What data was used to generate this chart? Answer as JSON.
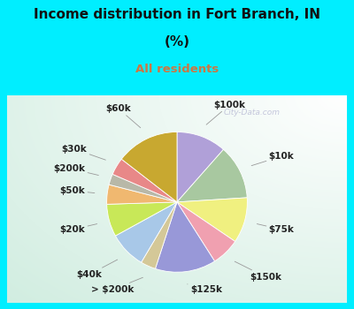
{
  "title_line1": "Income distribution in Fort Branch, IN",
  "title_line2": "(%)",
  "subtitle": "All residents",
  "title_color": "#111111",
  "subtitle_color": "#cc7744",
  "bg_cyan": "#00eeff",
  "watermark": "City-Data.com",
  "labels": [
    "$100k",
    "$10k",
    "$75k",
    "$150k",
    "$125k",
    "> $200k",
    "$40k",
    "$20k",
    "$50k",
    "$200k",
    "$30k",
    "$60k"
  ],
  "values": [
    11.5,
    12.5,
    10.5,
    6.5,
    14.0,
    3.5,
    8.5,
    7.5,
    4.5,
    2.5,
    4.0,
    14.5
  ],
  "colors": [
    "#b0a0d8",
    "#a8c8a0",
    "#f0f080",
    "#f0a0b0",
    "#9898d8",
    "#d4c898",
    "#a8c8e8",
    "#c8e858",
    "#f0b870",
    "#b8b8a8",
    "#e88888",
    "#c8a830"
  ],
  "label_color": "#222222",
  "label_fontsize": 7.5,
  "figsize": [
    4.0,
    3.5
  ],
  "dpi": 100,
  "title_fontsize": 11,
  "subtitle_fontsize": 9.5
}
